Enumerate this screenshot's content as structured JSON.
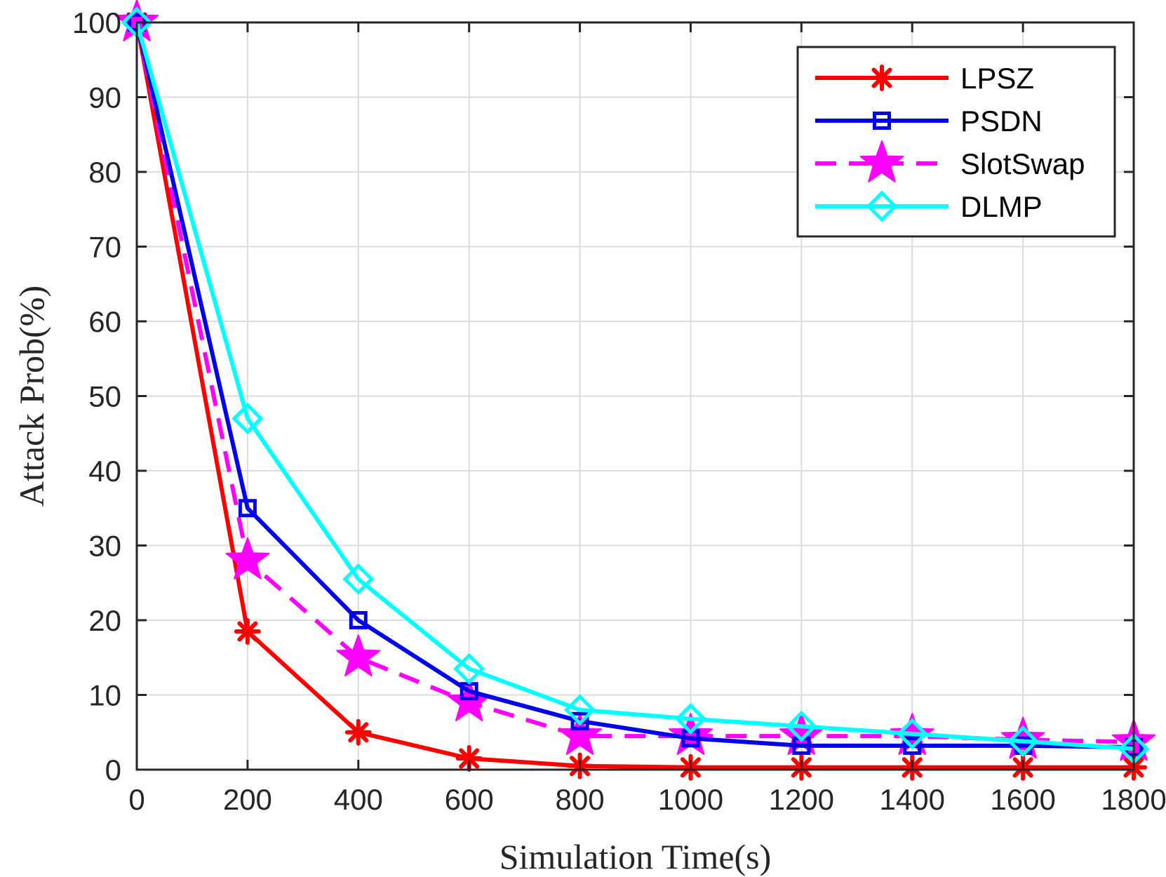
{
  "chart_data": {
    "type": "line",
    "title": "",
    "xlabel": "Simulation Time(s)",
    "ylabel": "Attack Prob(%)",
    "xlim": [
      0,
      1800
    ],
    "ylim": [
      0,
      100
    ],
    "x_ticks": [
      0,
      200,
      400,
      600,
      800,
      1000,
      1200,
      1400,
      1600,
      1800
    ],
    "y_ticks": [
      0,
      10,
      20,
      30,
      40,
      50,
      60,
      70,
      80,
      90,
      100
    ],
    "grid": true,
    "legend_position": "top-right",
    "x": [
      0,
      200,
      400,
      600,
      800,
      1000,
      1200,
      1400,
      1600,
      1800
    ],
    "series": [
      {
        "name": "LPSZ",
        "color": "#ff0000",
        "line_style": "solid",
        "marker": "asterisk",
        "values": [
          100,
          18.5,
          5,
          1.5,
          0.5,
          0.3,
          0.3,
          0.3,
          0.3,
          0.3
        ]
      },
      {
        "name": "PSDN",
        "color": "#0000ee",
        "line_style": "solid",
        "marker": "square",
        "values": [
          100,
          35,
          20,
          10.5,
          6.5,
          4.2,
          3.2,
          3.2,
          3.2,
          3.0
        ]
      },
      {
        "name": "SlotSwap",
        "color": "#ff00ff",
        "line_style": "dashed",
        "marker": "star",
        "values": [
          100,
          28,
          15,
          9,
          4.5,
          4.5,
          4.5,
          4.5,
          4.0,
          3.7
        ]
      },
      {
        "name": "DLMP",
        "color": "#00ffff",
        "line_style": "solid",
        "marker": "diamond",
        "values": [
          100,
          47,
          25.5,
          13.5,
          8,
          6.8,
          5.8,
          4.8,
          3.8,
          2.8
        ]
      }
    ]
  }
}
